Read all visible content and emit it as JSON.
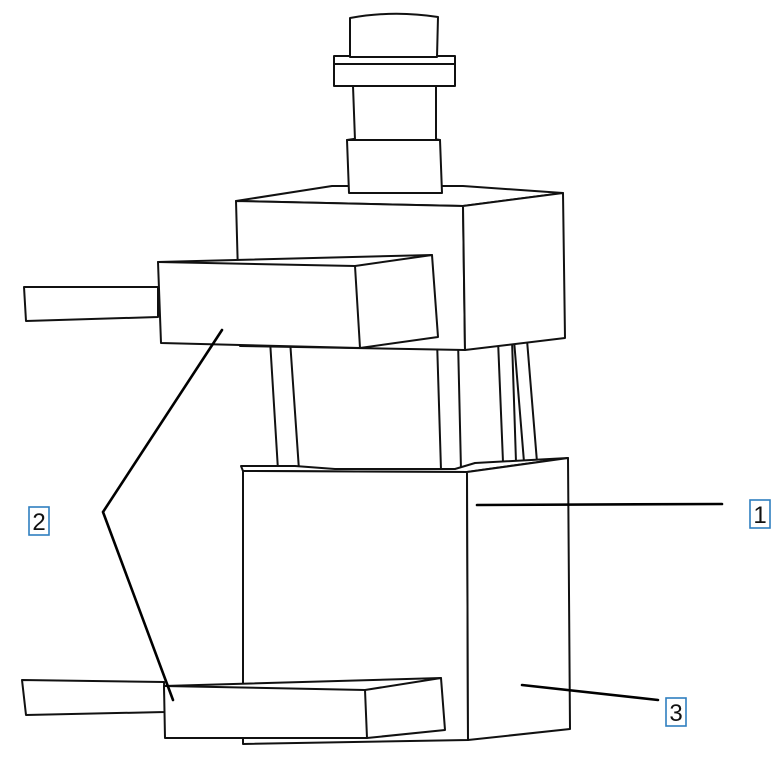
{
  "callouts": [
    {
      "label": "1"
    },
    {
      "label": "2"
    },
    {
      "label": "3"
    }
  ],
  "colors": {
    "line": "#111111",
    "callout_border": "#2f7fbf",
    "background": "#ffffff"
  }
}
